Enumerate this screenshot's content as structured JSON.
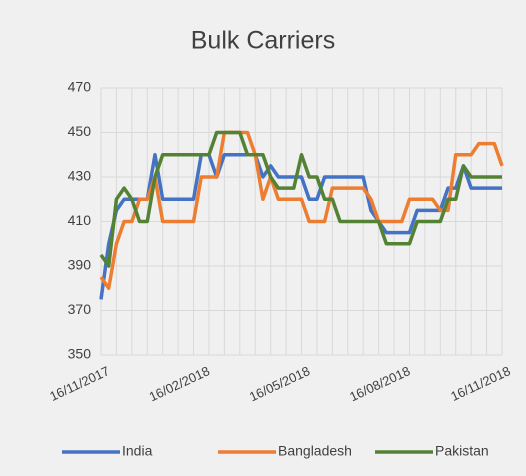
{
  "chart_data": {
    "type": "line",
    "title": "Bulk Carriers",
    "categories": [
      "16/11/2017",
      null,
      null,
      null,
      null,
      null,
      null,
      null,
      null,
      null,
      null,
      null,
      null,
      "16/02/2018",
      null,
      null,
      null,
      null,
      null,
      null,
      null,
      null,
      null,
      null,
      null,
      null,
      "16/05/2018",
      null,
      null,
      null,
      null,
      null,
      null,
      null,
      null,
      null,
      null,
      null,
      null,
      "16/08/2018",
      null,
      null,
      null,
      null,
      null,
      null,
      null,
      null,
      null,
      null,
      null,
      null,
      "16/11/2018"
    ],
    "series": [
      {
        "name": "India",
        "color": "#4472c4",
        "values": [
          375,
          400,
          415,
          420,
          420,
          420,
          420,
          440,
          420,
          420,
          420,
          420,
          420,
          440,
          440,
          430,
          440,
          440,
          440,
          440,
          440,
          430,
          435,
          430,
          430,
          430,
          430,
          420,
          420,
          430,
          430,
          430,
          430,
          430,
          430,
          415,
          410,
          405,
          405,
          405,
          405,
          415,
          415,
          415,
          415,
          425,
          425,
          435,
          425,
          425,
          425,
          425,
          425
        ]
      },
      {
        "name": "Bangladesh",
        "color": "#ed7d31",
        "values": [
          385,
          380,
          400,
          410,
          410,
          420,
          420,
          430,
          410,
          410,
          410,
          410,
          410,
          430,
          430,
          430,
          450,
          450,
          450,
          450,
          440,
          420,
          430,
          420,
          420,
          420,
          420,
          410,
          410,
          410,
          425,
          425,
          425,
          425,
          425,
          420,
          410,
          410,
          410,
          410,
          420,
          420,
          420,
          420,
          415,
          415,
          440,
          440,
          440,
          445,
          445,
          445,
          435
        ]
      },
      {
        "name": "Pakistan",
        "color": "#548235",
        "values": [
          395,
          390,
          420,
          425,
          420,
          410,
          410,
          430,
          440,
          440,
          440,
          440,
          440,
          440,
          440,
          450,
          450,
          450,
          450,
          440,
          440,
          440,
          430,
          425,
          425,
          425,
          440,
          430,
          430,
          420,
          420,
          410,
          410,
          410,
          410,
          410,
          410,
          400,
          400,
          400,
          400,
          410,
          410,
          410,
          410,
          420,
          420,
          435,
          430,
          430,
          430,
          430,
          430
        ]
      }
    ],
    "ylim": [
      350,
      470
    ],
    "yticks": [
      350,
      370,
      390,
      410,
      430,
      450,
      470
    ],
    "grid": true,
    "legend": "bottom"
  }
}
